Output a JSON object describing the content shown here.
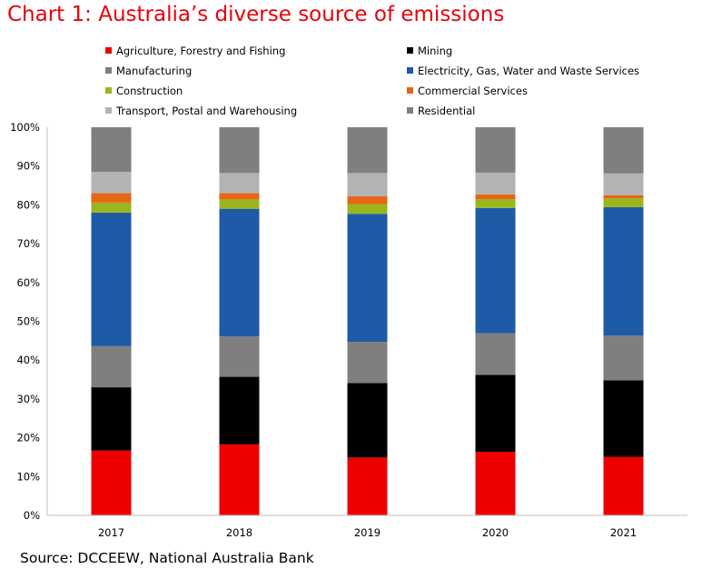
{
  "title": "Chart 1: Australia’s diverse source of emissions",
  "source": "Source: DCCEEW, National Australia Bank",
  "chart_data": {
    "type": "bar",
    "stacked": true,
    "normalized_percent": true,
    "categories": [
      "2017",
      "2018",
      "2019",
      "2020",
      "2021"
    ],
    "ylim": [
      0,
      100
    ],
    "yticks": [
      "0%",
      "10%",
      "20%",
      "30%",
      "40%",
      "50%",
      "60%",
      "70%",
      "80%",
      "90%",
      "100%"
    ],
    "grid": false,
    "legend_position": "top",
    "series": [
      {
        "name": "Agriculture, Forestry and Fishing",
        "color": "#ee0000",
        "values": [
          16.7,
          18.3,
          14.9,
          16.4,
          15.1
        ]
      },
      {
        "name": "Mining",
        "color": "#000000",
        "values": [
          16.3,
          17.4,
          19.2,
          19.8,
          19.7
        ]
      },
      {
        "name": "Manufacturing",
        "color": "#7f7f7f",
        "values": [
          10.6,
          10.4,
          10.6,
          10.7,
          11.5
        ]
      },
      {
        "name": "Electricity, Gas, Water and Waste Services",
        "color": "#1f5aa6",
        "values": [
          34.4,
          32.9,
          33.0,
          32.3,
          33.1
        ]
      },
      {
        "name": "Construction",
        "color": "#9bb51e",
        "values": [
          2.6,
          2.4,
          2.5,
          2.3,
          2.3
        ]
      },
      {
        "name": "Commercial Services",
        "color": "#e86513",
        "values": [
          2.4,
          1.6,
          2.0,
          1.2,
          0.8
        ]
      },
      {
        "name": "Transport, Postal and Warehousing",
        "color": "#b3b3b3",
        "values": [
          5.5,
          5.2,
          6.0,
          5.6,
          5.6
        ]
      },
      {
        "name": "Residential",
        "color": "#7f7f7f",
        "values": [
          11.5,
          11.8,
          11.8,
          11.7,
          11.9
        ]
      }
    ]
  }
}
